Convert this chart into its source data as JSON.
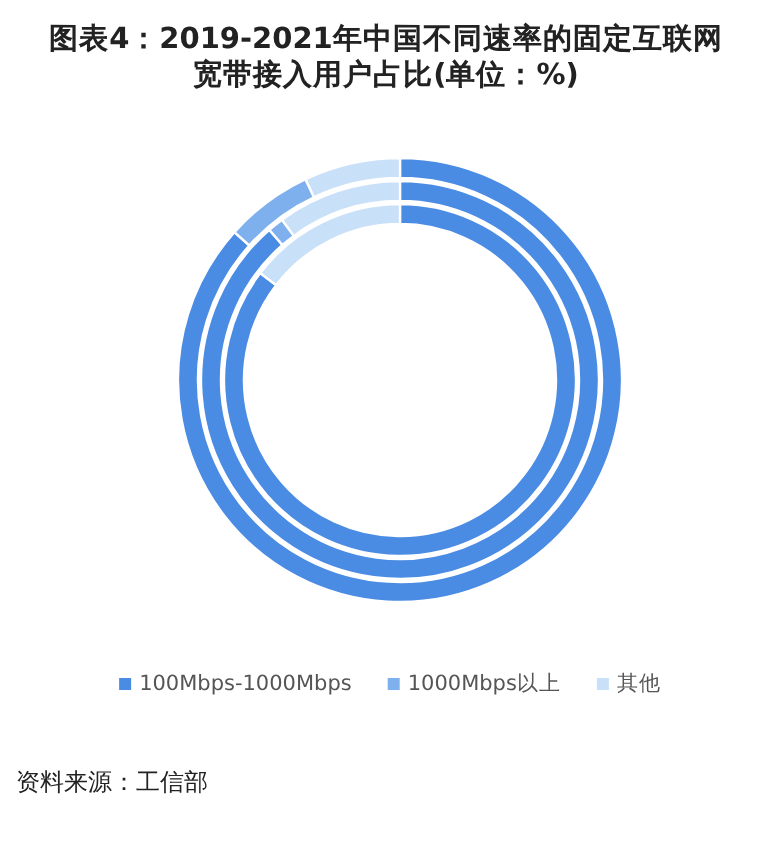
{
  "chart_data": [
    {
      "type": "donut",
      "title": "图表4：2019-2021年中国不同速率的固定互联网宽带接入用户占比(单位：%)",
      "categories": [
        "100Mbps-1000Mbps",
        "1000Mbps以上",
        "其他"
      ],
      "colors": [
        "#4a8be3",
        "#7fb0ee",
        "#c9e0f9"
      ],
      "values": [
        86.6,
        6.4,
        7.0
      ],
      "legend": "bottom",
      "annotations": [
        "资料来源：工信部"
      ]
    },
    {
      "type": "donut",
      "categories": [
        null,
        null,
        null
      ],
      "colors": [
        "#4a8be3",
        "#7fb0ee",
        "#c9e0f9"
      ],
      "values": [
        88.6,
        1.3,
        10.1
      ]
    },
    {
      "type": "donut",
      "categories": [
        null,
        null,
        null
      ],
      "colors": [
        "#4a8be3",
        "#7fb0ee",
        "#c9e0f9"
      ],
      "values": [
        85.4,
        0,
        14.6
      ]
    }
  ]
}
